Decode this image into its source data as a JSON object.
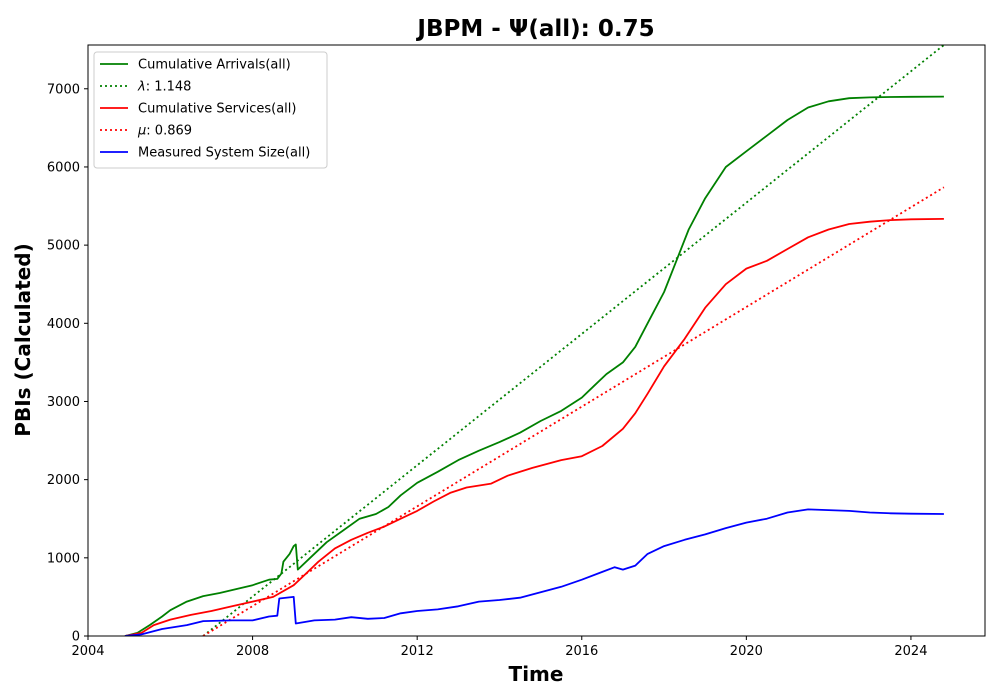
{
  "chart_data": {
    "type": "line",
    "title": "JBPM -  Ψ(all): 0.75",
    "xlabel": "Time",
    "ylabel": "PBIs (Calculated)",
    "xlim": [
      2004.0,
      2025.8
    ],
    "ylim": [
      0,
      7560
    ],
    "x_ticks": [
      2004,
      2008,
      2012,
      2016,
      2020,
      2024
    ],
    "y_ticks": [
      0,
      1000,
      2000,
      3000,
      4000,
      5000,
      6000,
      7000
    ],
    "legend_position": "upper-left",
    "grid": false,
    "series": [
      {
        "name": "Cumulative Arrivals(all)",
        "style": "solid",
        "color": "#008000",
        "points": [
          [
            2004.9,
            0
          ],
          [
            2005.2,
            40
          ],
          [
            2005.5,
            140
          ],
          [
            2005.8,
            250
          ],
          [
            2006.0,
            330
          ],
          [
            2006.4,
            440
          ],
          [
            2006.8,
            510
          ],
          [
            2007.2,
            550
          ],
          [
            2007.6,
            600
          ],
          [
            2008.0,
            650
          ],
          [
            2008.4,
            720
          ],
          [
            2008.6,
            730
          ],
          [
            2008.7,
            800
          ],
          [
            2008.75,
            950
          ],
          [
            2008.9,
            1050
          ],
          [
            2009.0,
            1150
          ],
          [
            2009.05,
            1170
          ],
          [
            2009.1,
            850
          ],
          [
            2009.4,
            1000
          ],
          [
            2009.8,
            1200
          ],
          [
            2010.2,
            1350
          ],
          [
            2010.6,
            1500
          ],
          [
            2011.0,
            1560
          ],
          [
            2011.3,
            1650
          ],
          [
            2011.6,
            1800
          ],
          [
            2012.0,
            1960
          ],
          [
            2012.5,
            2100
          ],
          [
            2013.0,
            2250
          ],
          [
            2013.5,
            2370
          ],
          [
            2014.0,
            2480
          ],
          [
            2014.5,
            2600
          ],
          [
            2015.0,
            2750
          ],
          [
            2015.5,
            2880
          ],
          [
            2016.0,
            3050
          ],
          [
            2016.3,
            3200
          ],
          [
            2016.6,
            3350
          ],
          [
            2017.0,
            3500
          ],
          [
            2017.3,
            3700
          ],
          [
            2017.6,
            4000
          ],
          [
            2018.0,
            4400
          ],
          [
            2018.3,
            4800
          ],
          [
            2018.6,
            5200
          ],
          [
            2019.0,
            5600
          ],
          [
            2019.5,
            6000
          ],
          [
            2020.0,
            6200
          ],
          [
            2020.5,
            6400
          ],
          [
            2021.0,
            6600
          ],
          [
            2021.5,
            6760
          ],
          [
            2022.0,
            6840
          ],
          [
            2022.5,
            6880
          ],
          [
            2023.0,
            6890
          ],
          [
            2023.5,
            6895
          ],
          [
            2024.0,
            6898
          ],
          [
            2024.8,
            6900
          ]
        ]
      },
      {
        "name": "λ: 1.148",
        "style": "dotted",
        "color": "#008000",
        "points": [
          [
            2006.8,
            0
          ],
          [
            2024.8,
            7560
          ]
        ]
      },
      {
        "name": "Cumulative Services(all)",
        "style": "solid",
        "color": "#ff0000",
        "points": [
          [
            2004.9,
            0
          ],
          [
            2005.3,
            40
          ],
          [
            2005.6,
            140
          ],
          [
            2006.0,
            210
          ],
          [
            2006.5,
            270
          ],
          [
            2007.0,
            320
          ],
          [
            2007.5,
            380
          ],
          [
            2008.0,
            440
          ],
          [
            2008.5,
            500
          ],
          [
            2009.0,
            650
          ],
          [
            2009.3,
            800
          ],
          [
            2009.6,
            950
          ],
          [
            2010.0,
            1120
          ],
          [
            2010.4,
            1230
          ],
          [
            2010.8,
            1320
          ],
          [
            2011.2,
            1400
          ],
          [
            2011.6,
            1500
          ],
          [
            2012.0,
            1600
          ],
          [
            2012.4,
            1720
          ],
          [
            2012.8,
            1830
          ],
          [
            2013.2,
            1900
          ],
          [
            2013.8,
            1950
          ],
          [
            2014.2,
            2050
          ],
          [
            2014.8,
            2150
          ],
          [
            2015.5,
            2250
          ],
          [
            2016.0,
            2300
          ],
          [
            2016.5,
            2430
          ],
          [
            2017.0,
            2650
          ],
          [
            2017.3,
            2850
          ],
          [
            2017.6,
            3100
          ],
          [
            2018.0,
            3450
          ],
          [
            2018.5,
            3800
          ],
          [
            2019.0,
            4200
          ],
          [
            2019.5,
            4500
          ],
          [
            2020.0,
            4700
          ],
          [
            2020.5,
            4800
          ],
          [
            2021.0,
            4950
          ],
          [
            2021.5,
            5100
          ],
          [
            2022.0,
            5200
          ],
          [
            2022.5,
            5270
          ],
          [
            2023.0,
            5300
          ],
          [
            2023.5,
            5320
          ],
          [
            2024.0,
            5330
          ],
          [
            2024.8,
            5335
          ]
        ]
      },
      {
        "name": "μ: 0.869",
        "style": "dotted",
        "color": "#ff0000",
        "points": [
          [
            2006.8,
            0
          ],
          [
            2024.8,
            5740
          ]
        ]
      },
      {
        "name": "Measured System Size(all)",
        "style": "solid",
        "color": "#0000ff",
        "points": [
          [
            2004.9,
            0
          ],
          [
            2005.3,
            20
          ],
          [
            2005.8,
            90
          ],
          [
            2006.4,
            140
          ],
          [
            2006.8,
            190
          ],
          [
            2007.5,
            200
          ],
          [
            2008.0,
            200
          ],
          [
            2008.4,
            250
          ],
          [
            2008.6,
            260
          ],
          [
            2008.65,
            480
          ],
          [
            2009.0,
            500
          ],
          [
            2009.05,
            160
          ],
          [
            2009.5,
            200
          ],
          [
            2010.0,
            210
          ],
          [
            2010.4,
            240
          ],
          [
            2010.8,
            220
          ],
          [
            2011.2,
            230
          ],
          [
            2011.6,
            290
          ],
          [
            2012.0,
            320
          ],
          [
            2012.5,
            340
          ],
          [
            2013.0,
            380
          ],
          [
            2013.5,
            440
          ],
          [
            2014.0,
            460
          ],
          [
            2014.5,
            490
          ],
          [
            2015.0,
            560
          ],
          [
            2015.5,
            630
          ],
          [
            2016.0,
            720
          ],
          [
            2016.5,
            820
          ],
          [
            2016.8,
            880
          ],
          [
            2017.0,
            850
          ],
          [
            2017.3,
            900
          ],
          [
            2017.6,
            1050
          ],
          [
            2018.0,
            1150
          ],
          [
            2018.5,
            1230
          ],
          [
            2019.0,
            1300
          ],
          [
            2019.5,
            1380
          ],
          [
            2020.0,
            1450
          ],
          [
            2020.5,
            1500
          ],
          [
            2021.0,
            1580
          ],
          [
            2021.5,
            1620
          ],
          [
            2022.0,
            1610
          ],
          [
            2022.5,
            1600
          ],
          [
            2023.0,
            1580
          ],
          [
            2023.5,
            1570
          ],
          [
            2024.0,
            1565
          ],
          [
            2024.8,
            1560
          ]
        ]
      }
    ],
    "legend": [
      {
        "label": "Cumulative Arrivals(all)",
        "style": "solid",
        "color": "#008000",
        "symbol": ""
      },
      {
        "label": ": 1.148",
        "style": "dotted",
        "color": "#008000",
        "symbol": "λ"
      },
      {
        "label": "Cumulative Services(all)",
        "style": "solid",
        "color": "#ff0000",
        "symbol": ""
      },
      {
        "label": ": 0.869",
        "style": "dotted",
        "color": "#ff0000",
        "symbol": "μ"
      },
      {
        "label": "Measured System Size(all)",
        "style": "solid",
        "color": "#0000ff",
        "symbol": ""
      }
    ]
  }
}
